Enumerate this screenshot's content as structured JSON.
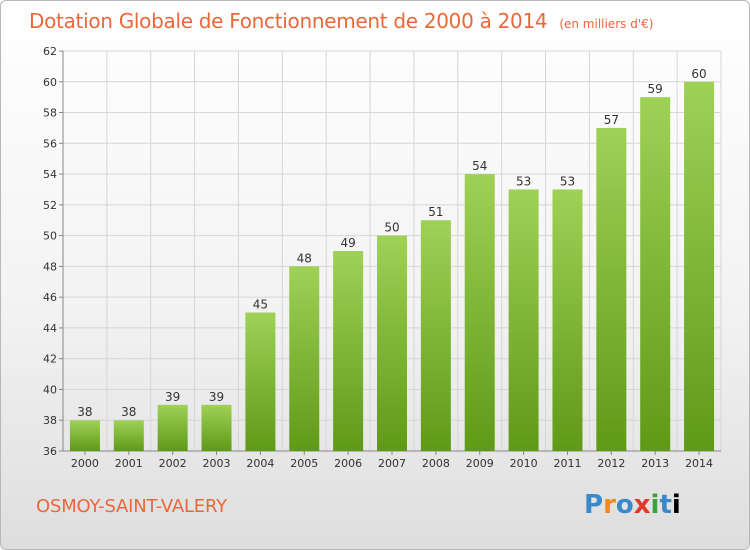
{
  "header": {
    "title": "Dotation Globale de Fonctionnement de 2000 à 2014",
    "unit": "(en milliers d'€)"
  },
  "footer": {
    "commune": "OSMOY-SAINT-VALERY",
    "logo_letters": [
      "P",
      "r",
      "o",
      "x",
      "i",
      "t",
      "i"
    ]
  },
  "colors": {
    "bar_top": "#9fd157",
    "bar_bottom": "#5f9a17",
    "title": "#e8683a",
    "grid": "#d6d6d6",
    "axis_text": "#333333"
  },
  "chart_data": {
    "type": "bar",
    "title": "Dotation Globale de Fonctionnement de 2000 à 2014",
    "subtitle": "(en milliers d'€)",
    "categories": [
      "2000",
      "2001",
      "2002",
      "2003",
      "2004",
      "2005",
      "2006",
      "2007",
      "2008",
      "2009",
      "2010",
      "2011",
      "2012",
      "2013",
      "2014"
    ],
    "values": [
      38,
      38,
      39,
      39,
      45,
      48,
      49,
      50,
      51,
      54,
      53,
      53,
      57,
      59,
      60
    ],
    "ylim": [
      36,
      62
    ],
    "yticks": [
      36,
      38,
      40,
      42,
      44,
      46,
      48,
      50,
      52,
      54,
      56,
      58,
      60,
      62
    ],
    "grid": true,
    "xlabel": "",
    "ylabel": ""
  }
}
